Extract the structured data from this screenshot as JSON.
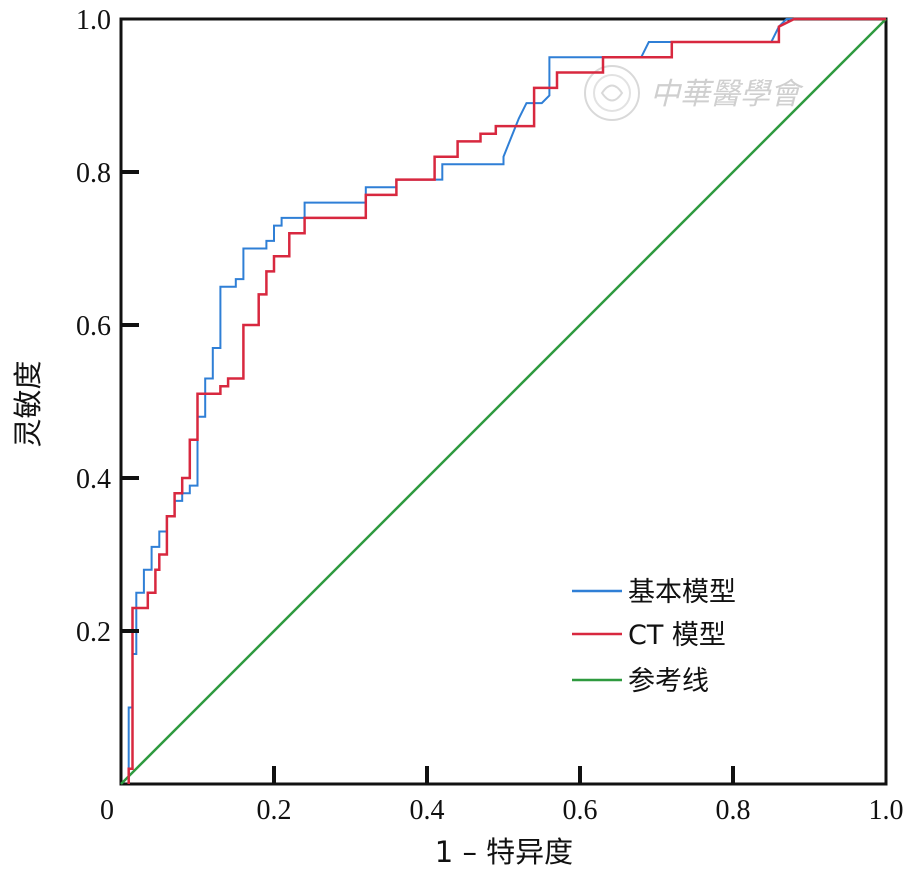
{
  "chart_data": {
    "type": "line",
    "title": "",
    "xlabel": "1 – 特异度",
    "ylabel": "灵敏度",
    "xlim": [
      0,
      1
    ],
    "ylim": [
      0,
      1
    ],
    "x_ticks": [
      "0",
      "0.2",
      "0.4",
      "0.6",
      "0.8",
      "1.0"
    ],
    "y_ticks": [
      "0.2",
      "0.4",
      "0.6",
      "0.8",
      "1.0"
    ],
    "grid": false,
    "legend_position": "bottom-right",
    "watermark": "中華醫學會",
    "series": [
      {
        "name": "基本模型",
        "color": "#2f7fd6",
        "x": [
          0.01,
          0.01,
          0.015,
          0.015,
          0.02,
          0.02,
          0.03,
          0.03,
          0.04,
          0.04,
          0.05,
          0.05,
          0.06,
          0.06,
          0.07,
          0.07,
          0.08,
          0.08,
          0.09,
          0.09,
          0.1,
          0.1,
          0.11,
          0.11,
          0.12,
          0.12,
          0.13,
          0.13,
          0.15,
          0.15,
          0.16,
          0.16,
          0.19,
          0.19,
          0.2,
          0.2,
          0.21,
          0.21,
          0.22,
          0.22,
          0.24,
          0.24,
          0.32,
          0.32,
          0.36,
          0.36,
          0.42,
          0.42,
          0.45,
          0.45,
          0.5,
          0.5,
          0.52,
          0.53,
          0.55,
          0.56,
          0.56,
          0.57,
          0.57,
          0.68,
          0.69,
          0.7,
          0.7,
          0.85,
          0.86,
          0.87,
          0.88,
          1.0
        ],
        "y": [
          0.0,
          0.1,
          0.1,
          0.17,
          0.17,
          0.25,
          0.25,
          0.28,
          0.28,
          0.31,
          0.31,
          0.33,
          0.33,
          0.35,
          0.35,
          0.37,
          0.37,
          0.38,
          0.38,
          0.39,
          0.39,
          0.48,
          0.48,
          0.53,
          0.53,
          0.57,
          0.57,
          0.65,
          0.65,
          0.66,
          0.66,
          0.7,
          0.7,
          0.71,
          0.71,
          0.73,
          0.73,
          0.74,
          0.74,
          0.74,
          0.74,
          0.76,
          0.76,
          0.78,
          0.78,
          0.79,
          0.79,
          0.81,
          0.81,
          0.81,
          0.81,
          0.82,
          0.87,
          0.89,
          0.89,
          0.9,
          0.95,
          0.95,
          0.95,
          0.95,
          0.97,
          0.97,
          0.97,
          0.97,
          0.99,
          1.0,
          1.0,
          1.0
        ]
      },
      {
        "name": "CT 模型",
        "color": "#d8283f",
        "x": [
          0.01,
          0.01,
          0.015,
          0.015,
          0.035,
          0.035,
          0.045,
          0.045,
          0.05,
          0.05,
          0.06,
          0.06,
          0.07,
          0.07,
          0.08,
          0.08,
          0.09,
          0.09,
          0.1,
          0.1,
          0.13,
          0.13,
          0.14,
          0.14,
          0.16,
          0.16,
          0.18,
          0.18,
          0.19,
          0.19,
          0.2,
          0.2,
          0.22,
          0.22,
          0.24,
          0.24,
          0.32,
          0.32,
          0.36,
          0.36,
          0.41,
          0.41,
          0.44,
          0.44,
          0.47,
          0.47,
          0.49,
          0.49,
          0.52,
          0.54,
          0.54,
          0.57,
          0.57,
          0.63,
          0.63,
          0.72,
          0.72,
          0.86,
          0.86,
          0.88,
          1.0
        ],
        "y": [
          0.0,
          0.02,
          0.02,
          0.23,
          0.23,
          0.25,
          0.25,
          0.28,
          0.28,
          0.3,
          0.3,
          0.35,
          0.35,
          0.38,
          0.38,
          0.4,
          0.4,
          0.45,
          0.45,
          0.51,
          0.51,
          0.52,
          0.52,
          0.53,
          0.53,
          0.6,
          0.6,
          0.64,
          0.64,
          0.67,
          0.67,
          0.69,
          0.69,
          0.72,
          0.72,
          0.74,
          0.74,
          0.77,
          0.77,
          0.79,
          0.79,
          0.82,
          0.82,
          0.84,
          0.84,
          0.85,
          0.85,
          0.86,
          0.86,
          0.86,
          0.91,
          0.91,
          0.93,
          0.93,
          0.95,
          0.95,
          0.97,
          0.97,
          0.99,
          1.0,
          1.0
        ]
      },
      {
        "name": "参考线",
        "color": "#2e9a3f",
        "x": [
          0,
          1
        ],
        "y": [
          0,
          1
        ]
      }
    ]
  }
}
